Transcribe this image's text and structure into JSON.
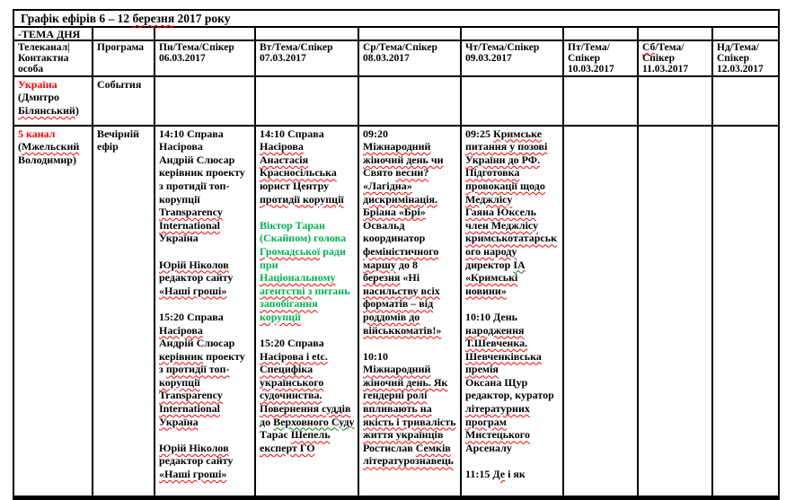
{
  "colors": {
    "red": "#FF0000",
    "green": "#00B050",
    "green_sq": "#008000"
  },
  "table": {
    "title": [
      [
        [
          "Графік ефірів 6 – 12 ",
          ""
        ],
        [
          "березня",
          "sq"
        ],
        [
          " 2017 року",
          ""
        ]
      ]
    ],
    "theme_row": [
      [
        [
          "-ТЕМА ДНЯ",
          ""
        ]
      ]
    ],
    "headers": [
      [
        [
          [
            "Телеканал|",
            ""
          ]
        ],
        [
          [
            "Контактна особа",
            ""
          ]
        ]
      ],
      [
        [
          [
            "Програма",
            ""
          ]
        ]
      ],
      [
        [
          [
            "Пн/Тема/Спікер",
            ""
          ]
        ],
        [
          [
            "06.03.2017",
            ""
          ]
        ]
      ],
      [
        [
          [
            "Вт/Тема/Спікер",
            ""
          ]
        ],
        [
          [
            "07.03.2017",
            ""
          ]
        ]
      ],
      [
        [
          [
            "Ср/Тема/Спікер",
            ""
          ]
        ],
        [
          [
            "08.03.2017",
            ""
          ]
        ]
      ],
      [
        [
          [
            "Чт/Тема/Спікер",
            ""
          ]
        ],
        [
          [
            "09.03.2017",
            ""
          ]
        ]
      ],
      [
        [
          [
            "Пт/Тема/Спікер",
            ""
          ]
        ],
        [
          [
            "10.03.2017",
            ""
          ]
        ]
      ],
      [
        [
          [
            "Сб",
            "sq"
          ],
          [
            "/Тема/Спікер",
            ""
          ]
        ],
        [
          [
            "11.03.2017",
            ""
          ]
        ]
      ],
      [
        [
          [
            "Нд/Тема/Спікер",
            ""
          ]
        ],
        [
          [
            "12.03.2017",
            ""
          ]
        ]
      ]
    ],
    "rows": [
      {
        "id": "ukraina",
        "cells": [
          [
            [
              [
                "Україна",
                "r"
              ]
            ],
            [
              [
                "(Дмитро ",
                ""
              ],
              [
                "Білянський",
                "sq"
              ],
              [
                ")",
                ""
              ]
            ]
          ],
          [
            [
              [
                "События",
                ""
              ]
            ]
          ],
          [],
          [],
          [],
          [],
          [],
          [],
          []
        ]
      },
      {
        "id": "5kanal",
        "cells": [
          [
            [
              [
                "5 канал",
                "r"
              ]
            ],
            [
              [
                "(",
                ""
              ],
              [
                "Мжельский",
                "sq"
              ],
              [
                " Володимир)",
                ""
              ]
            ]
          ],
          [
            [
              [
                "Вечірній ефір",
                ""
              ]
            ]
          ],
          [
            [
              [
                "14:10 Справа Насірова",
                ""
              ]
            ],
            [
              [
                "Андрій Слюсар керівник проекту з протидії топ-корупції ",
                ""
              ],
              [
                "Transparency International",
                "sq"
              ],
              [
                " Україна",
                ""
              ]
            ],
            [],
            [
              [
                "Юрій Ніколов",
                "sq"
              ],
              [
                " редактор сайту ",
                ""
              ],
              [
                "«Наші гроші»",
                "sq"
              ]
            ],
            [],
            [
              [
                "15:20 Справа ",
                ""
              ],
              [
                "Насірова",
                "sq"
              ]
            ],
            [
              [
                "Андрій Слюсар ",
                ""
              ],
              [
                "керівник",
                "sq"
              ],
              [
                " проекту з ",
                ""
              ],
              [
                "протидії топ-корупції",
                "sq"
              ],
              [
                " ",
                ""
              ],
              [
                "Transparency International",
                "sq"
              ],
              [
                " ",
                ""
              ],
              [
                "Україна",
                "sq"
              ]
            ],
            [],
            [
              [
                "Юрій Ніколов",
                "sq"
              ],
              [
                " редактор сайту ",
                ""
              ],
              [
                "«Наші гроші»",
                "sq"
              ]
            ]
          ],
          [
            [
              [
                "14:10 Справа ",
                ""
              ],
              [
                "Насірова",
                "sq"
              ]
            ],
            [
              [
                "Анастасія Красносільська",
                "sq"
              ],
              [
                " юрист Центру ",
                ""
              ],
              [
                "протидії корупції",
                "sq"
              ]
            ],
            [],
            [
              [
                "Віктор Таран (Скайпом) голова ",
                "g"
              ],
              [
                "Громадської",
                "g sq"
              ],
              [
                " ради при ",
                "g"
              ],
              [
                "Національному",
                "g sq"
              ],
              [
                " ",
                "g"
              ],
              [
                "агентстві з",
                "g sq"
              ],
              [
                " питань ",
                "g"
              ],
              [
                "запобігання",
                "g sq"
              ],
              [
                " ",
                "g"
              ],
              [
                "корупції",
                "g sq"
              ]
            ],
            [],
            [
              [
                "15:20 Справа ",
                ""
              ],
              [
                "Насірова і etc.",
                "sq"
              ],
              [
                " ",
                ""
              ],
              [
                "Специфіка українського судочинства.",
                "sq"
              ],
              [
                " ",
                ""
              ],
              [
                "Повернення суддів",
                "sq"
              ],
              [
                " до ",
                ""
              ],
              [
                "Верховного Суду",
                "gsq"
              ]
            ],
            [
              [
                "Тарас ",
                ""
              ],
              [
                "Шепель",
                "sq"
              ],
              [
                " ",
                ""
              ],
              [
                "експерт ГО",
                "sq"
              ]
            ]
          ],
          [
            [
              [
                "09:20 ",
                ""
              ],
              [
                "Міжнародний",
                "sq"
              ],
              [
                " ",
                ""
              ],
              [
                "жіночий день чи",
                "sq"
              ],
              [
                " ",
                ""
              ],
              [
                "Свято ",
                ""
              ],
              [
                "весни?",
                "sq"
              ],
              [
                " ",
                ""
              ],
              [
                "«Лагідна» дискримінація.",
                "sq"
              ]
            ],
            [
              [
                "Бріана «Брі»",
                "sq"
              ],
              [
                " Освальд координатор ",
                ""
              ],
              [
                "феміністичного",
                "sq"
              ],
              [
                " ",
                ""
              ],
              [
                "маршу",
                "sq"
              ],
              [
                " до 8 ",
                ""
              ],
              [
                "березня",
                "sq"
              ],
              [
                " «Ні ",
                ""
              ],
              [
                "насильству всіх форматів – від роддомів до військкоматів!»",
                "sq"
              ]
            ],
            [],
            [
              [
                "10:10 ",
                ""
              ],
              [
                "Міжнародний жіночий день. Як",
                "sq"
              ],
              [
                " ",
                ""
              ],
              [
                "гендерні ролі впливають на",
                "sq"
              ],
              [
                " ",
                ""
              ],
              [
                "якість і тривалість життя українців",
                "sq"
              ]
            ],
            [
              [
                "Ростислав ",
                ""
              ],
              [
                "Семків",
                "sq"
              ],
              [
                " ",
                ""
              ],
              [
                "літературознавець",
                "sq"
              ]
            ]
          ],
          [
            [
              [
                "09:25 ",
                ""
              ],
              [
                "Кримське питання у позові України до РФ.",
                "sq"
              ],
              [
                " ",
                ""
              ],
              [
                "Підготовка провокації щодо Меджлісу",
                "sq"
              ]
            ],
            [
              [
                "Гаяна Юксель член Меджлісу кримськотатарського народу",
                "sq"
              ],
              [
                " директор ",
                ""
              ],
              [
                "ІА",
                "gsq"
              ],
              [
                " ",
                ""
              ],
              [
                "«Кримські новини»",
                "sq"
              ]
            ],
            [],
            [
              [
                "10:10 День ",
                ""
              ],
              [
                "народження",
                "sq"
              ],
              [
                " ",
                ""
              ],
              [
                "Т.Шевченка.",
                "sq"
              ],
              [
                " ",
                ""
              ],
              [
                "Шевченківська премія",
                "sq"
              ]
            ],
            [
              [
                "Оксана Щур редактор, куратор ",
                ""
              ],
              [
                "літературних програм Мистецького",
                "sq"
              ],
              [
                " Арсеналу",
                ""
              ]
            ],
            [],
            [
              [
                "11:15 ",
                ""
              ],
              [
                "Де",
                "sq"
              ],
              [
                " і як",
                ""
              ]
            ]
          ],
          [],
          [],
          []
        ]
      }
    ]
  }
}
